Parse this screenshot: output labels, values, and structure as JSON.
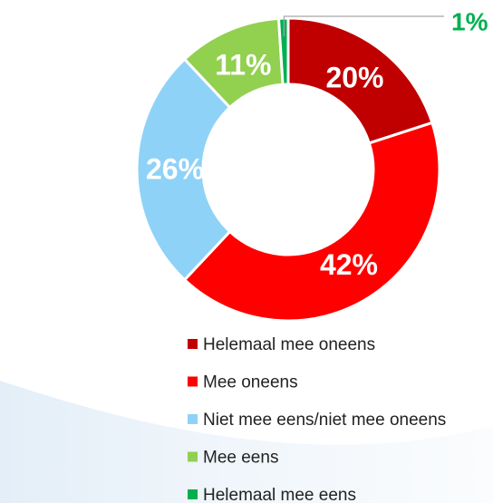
{
  "chart_data": {
    "type": "donut",
    "categories": [
      "Helemaal mee oneens",
      "Mee oneens",
      "Niet mee eens/niet mee oneens",
      "Mee eens",
      "Helemaal mee eens"
    ],
    "values": [
      20,
      42,
      26,
      11,
      1
    ],
    "value_labels": [
      "20%",
      "42%",
      "26%",
      "11%",
      "1%"
    ],
    "colors": [
      "#c00000",
      "#ff0000",
      "#8fd2f7",
      "#92d050",
      "#00b050"
    ]
  }
}
